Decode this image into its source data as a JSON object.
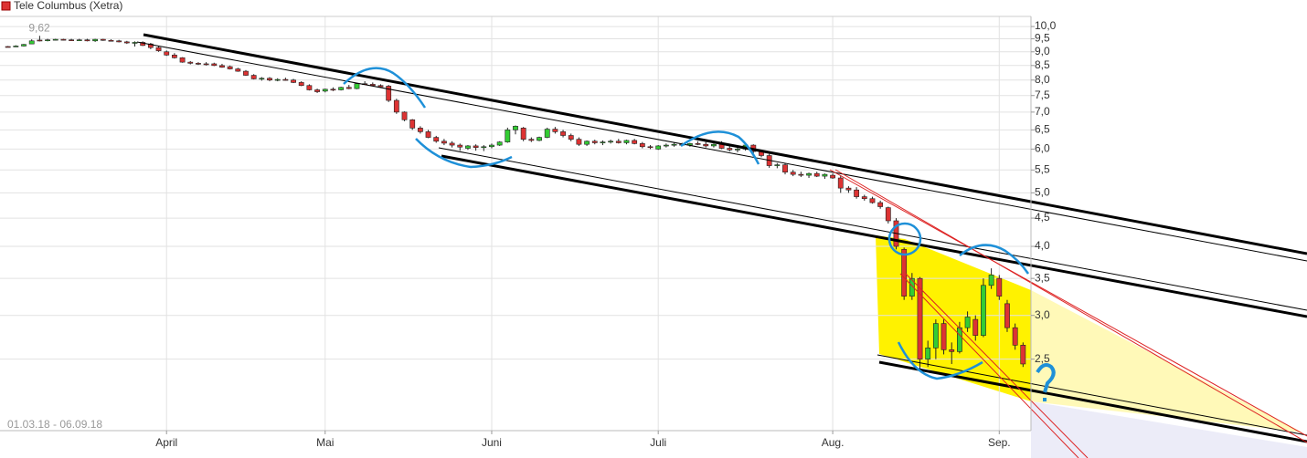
{
  "chart_data": {
    "type": "candlestick",
    "title": "Tele Columbus (Xetra)",
    "date_range": "01.03.18 - 06.09.18",
    "annotations": [
      {
        "text": "9,62",
        "value": 9.62
      }
    ],
    "log_scale": true,
    "grid": true,
    "up_color": "#33cc33",
    "down_color": "#dd3333",
    "ylim": [
      1.87,
      10.43
    ],
    "yticks": [
      {
        "value": 10,
        "label": "10,0"
      },
      {
        "value": 9.5,
        "label": "9,5"
      },
      {
        "value": 9,
        "label": "9,0"
      },
      {
        "value": 8.5,
        "label": "8,5"
      },
      {
        "value": 8,
        "label": "8,0"
      },
      {
        "value": 7.5,
        "label": "7,5"
      },
      {
        "value": 7,
        "label": "7,0"
      },
      {
        "value": 6.5,
        "label": "6,5"
      },
      {
        "value": 6,
        "label": "6,0"
      },
      {
        "value": 5.5,
        "label": "5,5"
      },
      {
        "value": 5,
        "label": "5,0"
      },
      {
        "value": 4.5,
        "label": "4,5"
      },
      {
        "value": 4,
        "label": "4,0"
      },
      {
        "value": 3.5,
        "label": "3,5"
      },
      {
        "value": 3,
        "label": "3,0"
      },
      {
        "value": 2.5,
        "label": "2,5"
      }
    ],
    "xlim": [
      -1,
      129
    ],
    "xticks": [
      {
        "value": 20,
        "label": "April"
      },
      {
        "value": 40,
        "label": "Mai"
      },
      {
        "value": 61,
        "label": "Juni"
      },
      {
        "value": 82,
        "label": "Juli"
      },
      {
        "value": 104,
        "label": "Aug."
      },
      {
        "value": 125,
        "label": "Sep."
      }
    ],
    "ohlc": [
      [
        9.2,
        9.22,
        9.18,
        9.2
      ],
      [
        9.2,
        9.25,
        9.18,
        9.22
      ],
      [
        9.22,
        9.3,
        9.2,
        9.28
      ],
      [
        9.3,
        9.48,
        9.3,
        9.42
      ],
      [
        9.45,
        9.62,
        9.4,
        9.45
      ],
      [
        9.45,
        9.5,
        9.4,
        9.46
      ],
      [
        9.46,
        9.5,
        9.44,
        9.48
      ],
      [
        9.48,
        9.5,
        9.44,
        9.46
      ],
      [
        9.46,
        9.5,
        9.44,
        9.45
      ],
      [
        9.45,
        9.5,
        9.42,
        9.46
      ],
      [
        9.46,
        9.5,
        9.4,
        9.42
      ],
      [
        9.42,
        9.5,
        9.38,
        9.48
      ],
      [
        9.48,
        9.5,
        9.42,
        9.44
      ],
      [
        9.44,
        9.48,
        9.4,
        9.42
      ],
      [
        9.42,
        9.46,
        9.36,
        9.38
      ],
      [
        9.38,
        9.42,
        9.3,
        9.34
      ],
      [
        9.34,
        9.4,
        9.2,
        9.36
      ],
      [
        9.36,
        9.4,
        9.22,
        9.24
      ],
      [
        9.3,
        9.34,
        9.1,
        9.16
      ],
      [
        9.16,
        9.2,
        9.0,
        9.04
      ],
      [
        9.0,
        9.05,
        8.85,
        8.88
      ],
      [
        8.88,
        8.95,
        8.75,
        8.78
      ],
      [
        8.78,
        8.8,
        8.6,
        8.62
      ],
      [
        8.62,
        8.66,
        8.54,
        8.58
      ],
      [
        8.58,
        8.62,
        8.52,
        8.56
      ],
      [
        8.56,
        8.62,
        8.5,
        8.54
      ],
      [
        8.56,
        8.6,
        8.48,
        8.5
      ],
      [
        8.5,
        8.56,
        8.42,
        8.44
      ],
      [
        8.46,
        8.5,
        8.36,
        8.38
      ],
      [
        8.38,
        8.42,
        8.28,
        8.3
      ],
      [
        8.3,
        8.34,
        8.14,
        8.16
      ],
      [
        8.16,
        8.2,
        8.02,
        8.04
      ],
      [
        8.04,
        8.1,
        7.98,
        8.06
      ],
      [
        8.06,
        8.1,
        7.96,
        8.0
      ],
      [
        8.0,
        8.06,
        7.96,
        8.02
      ],
      [
        8.02,
        8.08,
        7.98,
        8.0
      ],
      [
        8.0,
        8.04,
        7.9,
        7.92
      ],
      [
        7.92,
        7.96,
        7.8,
        7.82
      ],
      [
        7.82,
        7.86,
        7.66,
        7.68
      ],
      [
        7.68,
        7.72,
        7.58,
        7.62
      ],
      [
        7.64,
        7.72,
        7.6,
        7.7
      ],
      [
        7.7,
        7.76,
        7.64,
        7.68
      ],
      [
        7.68,
        7.78,
        7.66,
        7.76
      ],
      [
        7.76,
        7.84,
        7.7,
        7.72
      ],
      [
        7.72,
        7.9,
        7.7,
        7.88
      ],
      [
        7.88,
        7.96,
        7.84,
        7.86
      ],
      [
        7.86,
        7.92,
        7.8,
        7.82
      ],
      [
        7.82,
        7.86,
        7.76,
        7.78
      ],
      [
        7.8,
        7.84,
        7.3,
        7.35
      ],
      [
        7.35,
        7.4,
        6.95,
        7.0
      ],
      [
        7.0,
        7.02,
        6.74,
        6.78
      ],
      [
        6.78,
        6.8,
        6.5,
        6.55
      ],
      [
        6.55,
        6.6,
        6.4,
        6.45
      ],
      [
        6.45,
        6.5,
        6.28,
        6.3
      ],
      [
        6.3,
        6.34,
        6.16,
        6.2
      ],
      [
        6.2,
        6.26,
        6.1,
        6.15
      ],
      [
        6.15,
        6.2,
        6.04,
        6.1
      ],
      [
        6.1,
        6.14,
        5.96,
        6.05
      ],
      [
        6.02,
        6.1,
        5.98,
        6.08
      ],
      [
        6.08,
        6.12,
        5.96,
        6.04
      ],
      [
        6.04,
        6.1,
        5.95,
        6.06
      ],
      [
        6.06,
        6.14,
        6.02,
        6.1
      ],
      [
        6.1,
        6.2,
        6.08,
        6.18
      ],
      [
        6.18,
        6.56,
        6.16,
        6.5
      ],
      [
        6.5,
        6.62,
        6.38,
        6.6
      ],
      [
        6.55,
        6.58,
        6.2,
        6.25
      ],
      [
        6.25,
        6.3,
        6.18,
        6.22
      ],
      [
        6.22,
        6.32,
        6.2,
        6.3
      ],
      [
        6.3,
        6.56,
        6.28,
        6.52
      ],
      [
        6.52,
        6.58,
        6.4,
        6.45
      ],
      [
        6.45,
        6.5,
        6.3,
        6.35
      ],
      [
        6.35,
        6.4,
        6.2,
        6.25
      ],
      [
        6.25,
        6.3,
        6.08,
        6.12
      ],
      [
        6.12,
        6.22,
        6.08,
        6.2
      ],
      [
        6.2,
        6.24,
        6.12,
        6.16
      ],
      [
        6.16,
        6.22,
        6.1,
        6.18
      ],
      [
        6.18,
        6.24,
        6.14,
        6.2
      ],
      [
        6.2,
        6.26,
        6.14,
        6.16
      ],
      [
        6.16,
        6.24,
        6.12,
        6.22
      ],
      [
        6.22,
        6.26,
        6.12,
        6.14
      ],
      [
        6.14,
        6.18,
        6.02,
        6.06
      ],
      [
        6.06,
        6.1,
        6.0,
        6.04
      ],
      [
        6.0,
        6.1,
        5.98,
        6.08
      ],
      [
        6.08,
        6.14,
        6.04,
        6.1
      ],
      [
        6.1,
        6.16,
        6.06,
        6.12
      ],
      [
        6.12,
        6.16,
        6.08,
        6.1
      ],
      [
        6.1,
        6.16,
        6.06,
        6.14
      ],
      [
        6.14,
        6.2,
        6.1,
        6.12
      ],
      [
        6.12,
        6.18,
        6.04,
        6.08
      ],
      [
        6.08,
        6.14,
        6.04,
        6.12
      ],
      [
        6.12,
        6.2,
        6.0,
        6.02
      ],
      [
        6.02,
        6.08,
        5.94,
        5.98
      ],
      [
        5.98,
        6.04,
        5.92,
        6.0
      ],
      [
        6.0,
        6.14,
        5.96,
        6.1
      ],
      [
        6.1,
        6.12,
        5.9,
        5.94
      ],
      [
        5.94,
        5.98,
        5.8,
        5.84
      ],
      [
        5.84,
        5.88,
        5.55,
        5.6
      ],
      [
        5.6,
        5.66,
        5.54,
        5.62
      ],
      [
        5.62,
        5.66,
        5.4,
        5.45
      ],
      [
        5.45,
        5.5,
        5.36,
        5.4
      ],
      [
        5.4,
        5.46,
        5.34,
        5.38
      ],
      [
        5.38,
        5.44,
        5.32,
        5.42
      ],
      [
        5.42,
        5.46,
        5.34,
        5.36
      ],
      [
        5.36,
        5.42,
        5.3,
        5.4
      ],
      [
        5.38,
        5.42,
        5.3,
        5.32
      ],
      [
        5.32,
        5.38,
        5.0,
        5.1
      ],
      [
        5.1,
        5.14,
        5.0,
        5.06
      ],
      [
        5.06,
        5.12,
        4.88,
        4.92
      ],
      [
        4.92,
        4.96,
        4.84,
        4.88
      ],
      [
        4.88,
        4.92,
        4.78,
        4.8
      ],
      [
        4.8,
        4.84,
        4.68,
        4.72
      ],
      [
        4.7,
        4.72,
        4.4,
        4.45
      ],
      [
        4.45,
        4.5,
        3.95,
        4.0
      ],
      [
        3.95,
        3.98,
        3.2,
        3.25
      ],
      [
        3.25,
        3.58,
        3.2,
        3.5
      ],
      [
        3.5,
        3.52,
        2.4,
        2.5
      ],
      [
        2.5,
        2.7,
        2.42,
        2.62
      ],
      [
        2.62,
        2.95,
        2.5,
        2.9
      ],
      [
        2.9,
        2.95,
        2.55,
        2.6
      ],
      [
        2.6,
        2.68,
        2.45,
        2.58
      ],
      [
        2.58,
        2.92,
        2.56,
        2.85
      ],
      [
        2.85,
        3.05,
        2.8,
        2.98
      ],
      [
        2.95,
        3.0,
        2.7,
        2.76
      ],
      [
        2.76,
        3.5,
        2.74,
        3.4
      ],
      [
        3.4,
        3.65,
        3.35,
        3.55
      ],
      [
        3.5,
        3.55,
        3.2,
        3.25
      ],
      [
        3.15,
        3.2,
        2.8,
        2.85
      ],
      [
        2.85,
        2.9,
        2.6,
        2.65
      ],
      [
        2.65,
        2.68,
        2.42,
        2.45
      ]
    ]
  }
}
